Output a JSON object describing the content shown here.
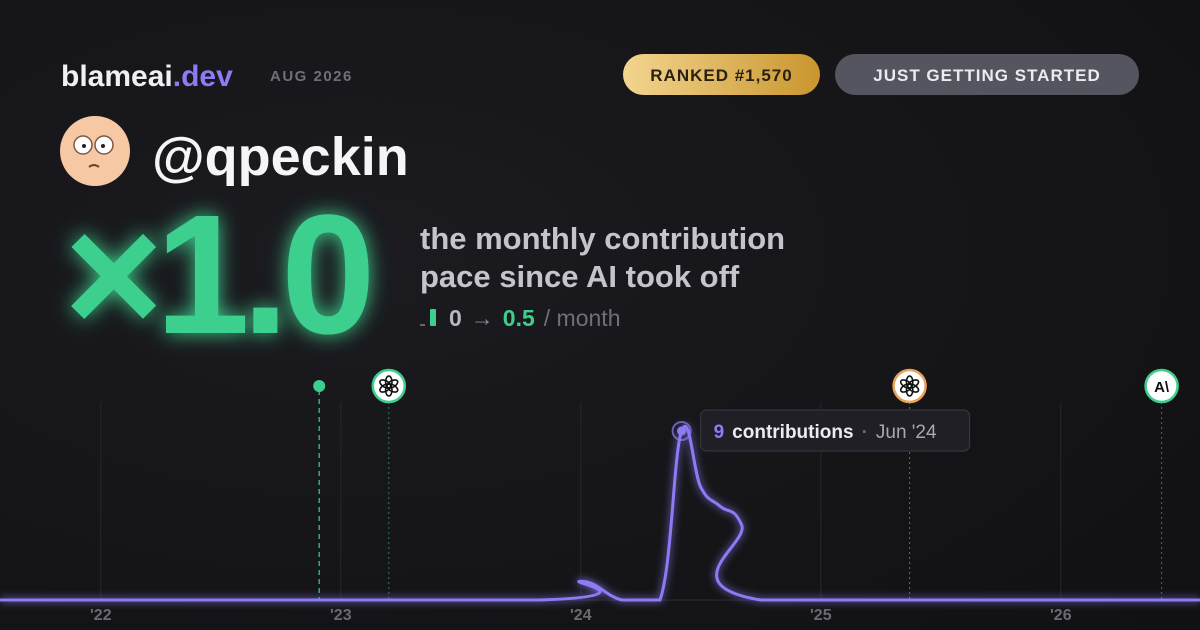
{
  "header": {
    "brand": "blameai",
    "brand_suffix": ".dev",
    "date": "AUG 2026",
    "rank_badge": "RANKED #1,570",
    "status_badge": "JUST GETTING STARTED"
  },
  "profile": {
    "username": "@qpeckin"
  },
  "headline": {
    "multiplier": "×1.0",
    "description": [
      "the monthly contribution",
      "pace since AI took off"
    ],
    "from": "0",
    "arrow": "→",
    "to": "0.5",
    "unit": "/ month"
  },
  "chart_data": {
    "type": "line",
    "x": [
      2021.58,
      2023.83,
      2024.0,
      2024.17,
      2024.33,
      2024.42,
      2024.5,
      2024.58,
      2024.67,
      2024.75,
      2026.58
    ],
    "series": [
      {
        "name": "contributions",
        "color": "#8b7cf6",
        "values": [
          0,
          0,
          1,
          0,
          0,
          9,
          6,
          5,
          4,
          0,
          0
        ]
      }
    ],
    "xlim": [
      2021.58,
      2026.58
    ],
    "ylim": [
      0,
      9
    ],
    "xticks": [
      {
        "value": 2022,
        "label": "'22"
      },
      {
        "value": 2023,
        "label": "'23"
      },
      {
        "value": 2024,
        "label": "'24"
      },
      {
        "value": 2025,
        "label": "'25"
      },
      {
        "value": 2026,
        "label": "'26"
      }
    ],
    "grid": true,
    "milestones": [
      {
        "x": 2022.91,
        "color": "#3ecf8e"
      },
      {
        "x": 2023.2,
        "color": "#3ecf8e"
      },
      {
        "x": 2025.37,
        "color": "#e8a25a"
      },
      {
        "x": 2026.42,
        "color": "#3ecf8e",
        "label": "A\\"
      }
    ],
    "tooltip": {
      "value": "9",
      "label": "contributions",
      "separator": "·",
      "date": "Jun '24"
    }
  }
}
